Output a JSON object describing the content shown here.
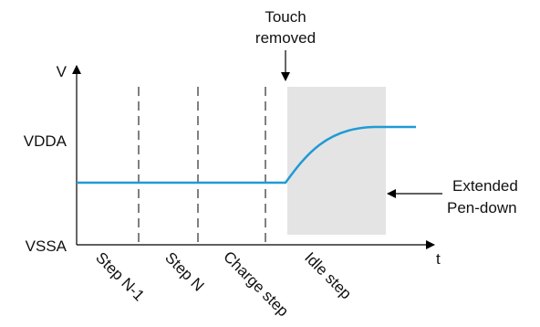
{
  "axes": {
    "y_label": "V",
    "x_label": "t",
    "y_levels": {
      "high": "VDDA",
      "low": "VSSA"
    }
  },
  "annotations": {
    "touch_removed_line1": "Touch",
    "touch_removed_line2": "removed",
    "extended_line1": "Extended",
    "extended_line2": "Pen-down"
  },
  "steps": [
    {
      "label": "Step N-1"
    },
    {
      "label": "Step N"
    },
    {
      "label": "Charge step"
    },
    {
      "label": "Idle step"
    }
  ],
  "colors": {
    "signal": "#1f9ad6",
    "idle_region": "#e4e4e4",
    "axis": "#000000"
  }
}
